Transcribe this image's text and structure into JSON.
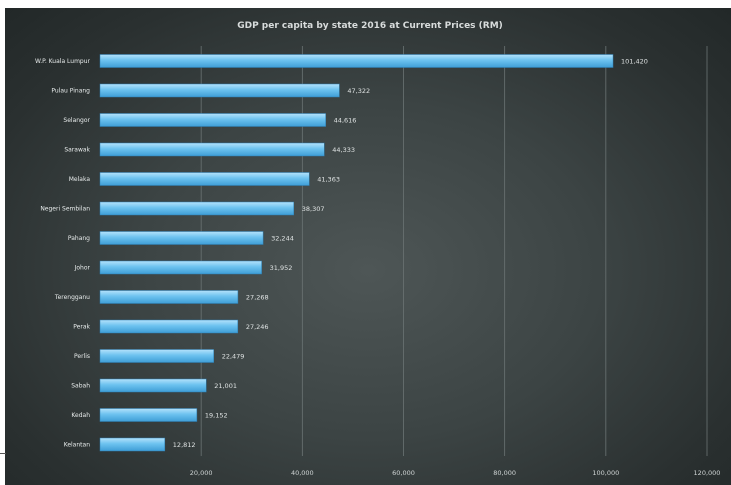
{
  "chart_data": {
    "type": "bar",
    "orientation": "horizontal",
    "title": "GDP per capita by state 2016 at Current Prices (RM)",
    "xlabel": "",
    "ylabel": "",
    "categories": [
      "W.P. Kuala Lumpur",
      "Pulau Pinang",
      "Selangor",
      "Sarawak",
      "Melaka",
      "Negeri Sembilan",
      "Pahang",
      "Johor",
      "Terengganu",
      "Perak",
      "Perlis",
      "Sabah",
      "Kedah",
      "Kelantan"
    ],
    "values": [
      101420,
      47322,
      44616,
      44333,
      41363,
      38307,
      32244,
      31952,
      27268,
      27246,
      22479,
      21001,
      19152,
      12812
    ],
    "value_labels": [
      "101,420",
      "47,322",
      "44,616",
      "44,333",
      "41,363",
      "38,307",
      "32,244",
      "31,952",
      "27,268",
      "27,246",
      "22,479",
      "21,001",
      "19,152",
      "12,812"
    ],
    "xlim": [
      0,
      120000
    ],
    "xticks": [
      0,
      20000,
      40000,
      60000,
      80000,
      100000,
      120000
    ],
    "xtick_labels": [
      "",
      "20,000",
      "40,000",
      "60,000",
      "80,000",
      "100,000",
      "120,000"
    ],
    "grid": "vertical",
    "legend": "none",
    "colors": {
      "bar_top": "#b4e2fb",
      "bar_mid": "#6cc2ef",
      "bar_bottom": "#3f9ed6",
      "gridline": "#6b7474"
    }
  }
}
